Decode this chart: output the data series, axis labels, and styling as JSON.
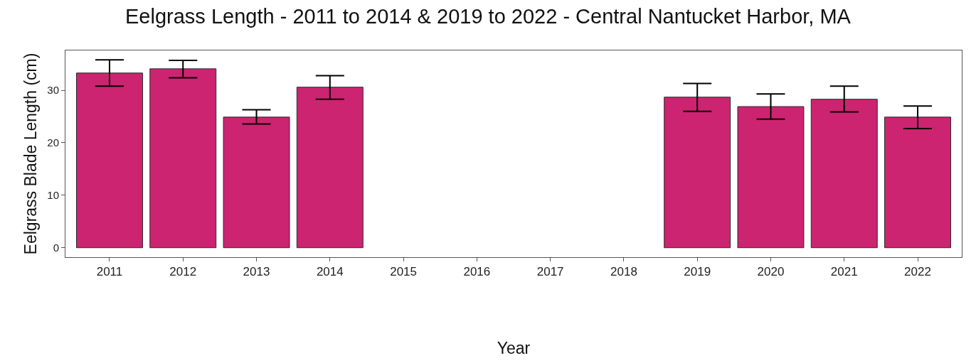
{
  "chart_data": {
    "type": "bar",
    "title": "Eelgrass Length - 2011 to 2014 & 2019 to 2022 - Central Nantucket Harbor, MA",
    "xlabel": "Year",
    "ylabel": "Eelgrass Blade Length (cm)",
    "categories": [
      "2011",
      "2012",
      "2013",
      "2014",
      "2015",
      "2016",
      "2017",
      "2018",
      "2019",
      "2020",
      "2021",
      "2022"
    ],
    "values": [
      33.3,
      34.1,
      24.9,
      30.6,
      null,
      null,
      null,
      null,
      28.7,
      26.9,
      28.3,
      24.9
    ],
    "errors": [
      [
        30.8,
        35.8
      ],
      [
        32.4,
        35.7
      ],
      [
        23.6,
        26.3
      ],
      [
        28.3,
        32.8
      ],
      null,
      null,
      null,
      null,
      [
        26.0,
        31.3
      ],
      [
        24.5,
        29.3
      ],
      [
        25.9,
        30.8
      ],
      [
        22.7,
        27.0
      ]
    ],
    "color": "#cc2470",
    "ylim": [
      -1.8,
      37.6
    ],
    "yticks": [
      0,
      10,
      20,
      30
    ]
  }
}
